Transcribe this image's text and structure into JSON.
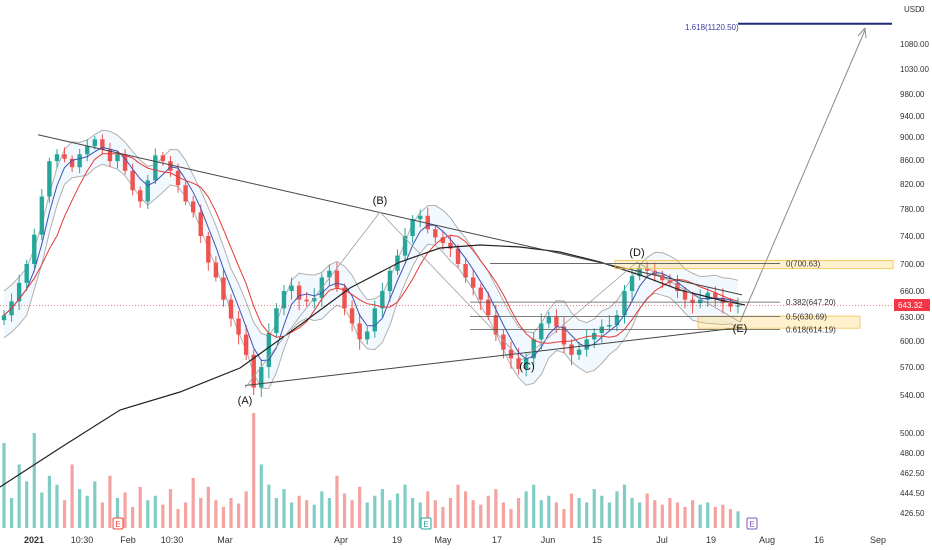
{
  "chart_data": {
    "type": "candlestick",
    "currency": "USD",
    "top_right_value": "0",
    "last_price": "643.32",
    "y_ticks": [
      "1080.00",
      "1030.00",
      "980.00",
      "940.00",
      "900.00",
      "860.00",
      "820.00",
      "780.00",
      "740.00",
      "700.00",
      "660.00",
      "630.00",
      "600.00",
      "570.00",
      "540.00",
      "500.00",
      "480.00",
      "462.50",
      "444.50",
      "426.50"
    ],
    "x_ticks": [
      "2021",
      "10:30",
      "Feb",
      "10:30",
      "Mar",
      "Apr",
      "19",
      "May",
      "17",
      "Jun",
      "15",
      "Jul",
      "19",
      "Aug",
      "16",
      "Sep"
    ],
    "wave_labels": [
      "(A)",
      "(B)",
      "(C)",
      "(D)",
      "(E)"
    ],
    "fib_levels": [
      {
        "ratio": "0",
        "label": "0(700.63)",
        "value": 700.63
      },
      {
        "ratio": "0.382",
        "label": "0.382(647.20)",
        "value": 647.2
      },
      {
        "ratio": "0.5",
        "label": "0.5(630.69)",
        "value": 630.69
      },
      {
        "ratio": "0.618",
        "label": "0.618(614.19)",
        "value": 614.19
      }
    ],
    "extension": {
      "label": "1.618(1120.50)",
      "value": 1120.5
    },
    "event_markers": [
      "E",
      "E",
      "E"
    ],
    "triangle": {
      "upper_start": 890,
      "upper_end": 672,
      "lower_start": 548,
      "lower_end": 612
    },
    "close_series": [
      632,
      648,
      672,
      700,
      742,
      800,
      858,
      870,
      862,
      848,
      870,
      884,
      896,
      878,
      858,
      870,
      842,
      810,
      792,
      826,
      868,
      858,
      842,
      818,
      792,
      775,
      740,
      702,
      680,
      650,
      628,
      608,
      584,
      548,
      570,
      610,
      640,
      660,
      668,
      650,
      648,
      652,
      680,
      690,
      665,
      640,
      622,
      602,
      612,
      640,
      660,
      690,
      712,
      740,
      765,
      770,
      750,
      738,
      730,
      722,
      700,
      680,
      665,
      650,
      632,
      608,
      590,
      580,
      568,
      580,
      602,
      622,
      630,
      618,
      596,
      584,
      590,
      602,
      610,
      618,
      620,
      632,
      660,
      682,
      694,
      690,
      684,
      676,
      672,
      660,
      650,
      646,
      650,
      658,
      652,
      646,
      642,
      643.32
    ],
    "volume_series": [
      490,
      440,
      470,
      455,
      500,
      445,
      460,
      452,
      438,
      470,
      448,
      442,
      455,
      436,
      460,
      440,
      445,
      432,
      450,
      438,
      442,
      434,
      448,
      430,
      436,
      458,
      440,
      450,
      438,
      432,
      440,
      435,
      446,
      520,
      470,
      452,
      440,
      448,
      436,
      442,
      438,
      434,
      446,
      440,
      460,
      444,
      438,
      450,
      436,
      442,
      448,
      438,
      444,
      452,
      440,
      436,
      446,
      438,
      432,
      440,
      452,
      446,
      438,
      434,
      442,
      448,
      436,
      430,
      440,
      446,
      452,
      438,
      442,
      436,
      430,
      444,
      440,
      436,
      448,
      442,
      436,
      446,
      452,
      440,
      436,
      444,
      438,
      434,
      440,
      436,
      432,
      438,
      434,
      436,
      432,
      434,
      430,
      428
    ]
  }
}
